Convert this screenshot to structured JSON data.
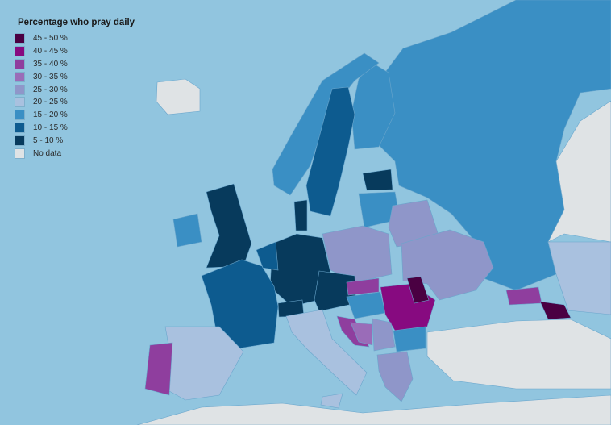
{
  "legend": {
    "title": "Percentage who pray daily",
    "items": [
      {
        "label": "45 - 50 %",
        "color": "#4a0042"
      },
      {
        "label": "40 - 45 %",
        "color": "#870a80"
      },
      {
        "label": "35 - 40 %",
        "color": "#8f3e9e"
      },
      {
        "label": "30 - 35 %",
        "color": "#9a6cb8"
      },
      {
        "label": "25 - 30 %",
        "color": "#8f96c9"
      },
      {
        "label": "20 - 25 %",
        "color": "#a9c1df"
      },
      {
        "label": "15 - 20 %",
        "color": "#3a8fc4"
      },
      {
        "label": "10 - 15 %",
        "color": "#0d5b8f"
      },
      {
        "label": "5 - 10 %",
        "color": "#073a5c"
      },
      {
        "label": "No data",
        "color": "#dfe3e5"
      }
    ]
  },
  "sea_color": "#91c5df",
  "regions": [
    {
      "id": "russia",
      "category": 6
    },
    {
      "id": "east-nodata",
      "category": 9
    },
    {
      "id": "kazakhstan",
      "category": 5
    },
    {
      "id": "finland",
      "category": 6
    },
    {
      "id": "norway",
      "category": 6
    },
    {
      "id": "sweden",
      "category": 7
    },
    {
      "id": "estonia",
      "category": 8
    },
    {
      "id": "baltics",
      "category": 6
    },
    {
      "id": "belarus",
      "category": 4
    },
    {
      "id": "ukraine",
      "category": 4
    },
    {
      "id": "poland",
      "category": 4
    },
    {
      "id": "germany",
      "category": 8
    },
    {
      "id": "czech-austria",
      "category": 8
    },
    {
      "id": "denmark",
      "category": 8
    },
    {
      "id": "uk",
      "category": 8
    },
    {
      "id": "ireland",
      "category": 6
    },
    {
      "id": "france",
      "category": 7
    },
    {
      "id": "benelux",
      "category": 7
    },
    {
      "id": "switzerland",
      "category": 8
    },
    {
      "id": "spain",
      "category": 5
    },
    {
      "id": "portugal",
      "category": 2
    },
    {
      "id": "italy",
      "category": 5
    },
    {
      "id": "slovakia",
      "category": 2
    },
    {
      "id": "hungary",
      "category": 6
    },
    {
      "id": "romania",
      "category": 1
    },
    {
      "id": "moldova",
      "category": 0
    },
    {
      "id": "croatia",
      "category": 2
    },
    {
      "id": "bosnia",
      "category": 3
    },
    {
      "id": "serbia",
      "category": 4
    },
    {
      "id": "bulgaria",
      "category": 6
    },
    {
      "id": "greece",
      "category": 4
    },
    {
      "id": "caucasus-north",
      "category": 2
    },
    {
      "id": "georgia-armenia",
      "category": 0
    },
    {
      "id": "iceland",
      "category": 9
    },
    {
      "id": "turkey",
      "category": 9
    },
    {
      "id": "africa",
      "category": 9
    }
  ]
}
